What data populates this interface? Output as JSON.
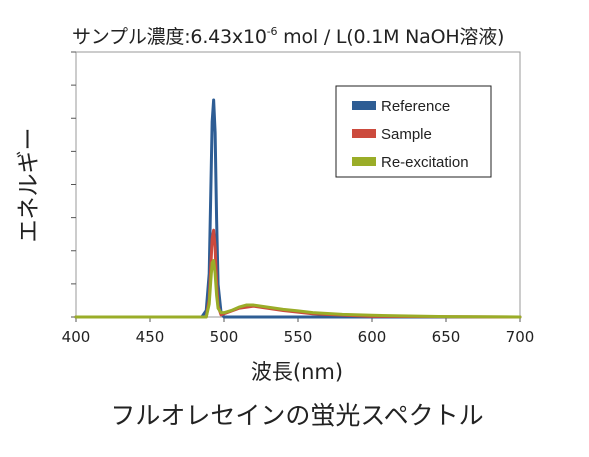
{
  "chart_data": {
    "type": "line",
    "subtitle_prefix": "サンプル濃度:6.43x10",
    "subtitle_exponent": "-6",
    "subtitle_suffix": " mol / L(0.1M NaOH溶液)",
    "title": "フルオレセインの蛍光スペクトル",
    "xlabel": "波長(nm)",
    "ylabel": "エネルギー",
    "xlim": [
      400,
      700
    ],
    "ylim": [
      0,
      1
    ],
    "x_ticks": [
      "400",
      "450",
      "500",
      "550",
      "600",
      "650",
      "700"
    ],
    "y_ticks_count": 8,
    "grid": false,
    "legend_position": "top-right",
    "series": [
      {
        "name": "Reference",
        "color": "#2e5d94",
        "x": [
          400,
          485,
          488,
          490,
          491,
          492,
          493,
          494,
          495,
          496,
          498,
          500,
          700
        ],
        "y": [
          0,
          0,
          0.03,
          0.2,
          0.55,
          0.9,
          1.0,
          0.85,
          0.45,
          0.15,
          0.02,
          0,
          0
        ]
      },
      {
        "name": "Sample",
        "color": "#cc4a3d",
        "x": [
          400,
          488,
          490,
          491,
          492,
          493,
          494,
          495,
          496,
          498,
          500,
          510,
          520,
          540,
          560,
          600,
          700
        ],
        "y": [
          0,
          0,
          0.08,
          0.22,
          0.36,
          0.4,
          0.32,
          0.15,
          0.05,
          0.01,
          0.015,
          0.04,
          0.05,
          0.03,
          0.015,
          0.003,
          0
        ]
      },
      {
        "name": "Re-excitation",
        "color": "#9aad28",
        "x": [
          400,
          488,
          490,
          491,
          492,
          493,
          494,
          495,
          496,
          498,
          500,
          505,
          510,
          515,
          520,
          530,
          540,
          550,
          560,
          580,
          600,
          620,
          650,
          700
        ],
        "y": [
          0,
          0,
          0.06,
          0.16,
          0.25,
          0.26,
          0.2,
          0.1,
          0.04,
          0.02,
          0.02,
          0.03,
          0.045,
          0.055,
          0.055,
          0.045,
          0.035,
          0.028,
          0.02,
          0.012,
          0.008,
          0.005,
          0.002,
          0
        ]
      }
    ]
  }
}
